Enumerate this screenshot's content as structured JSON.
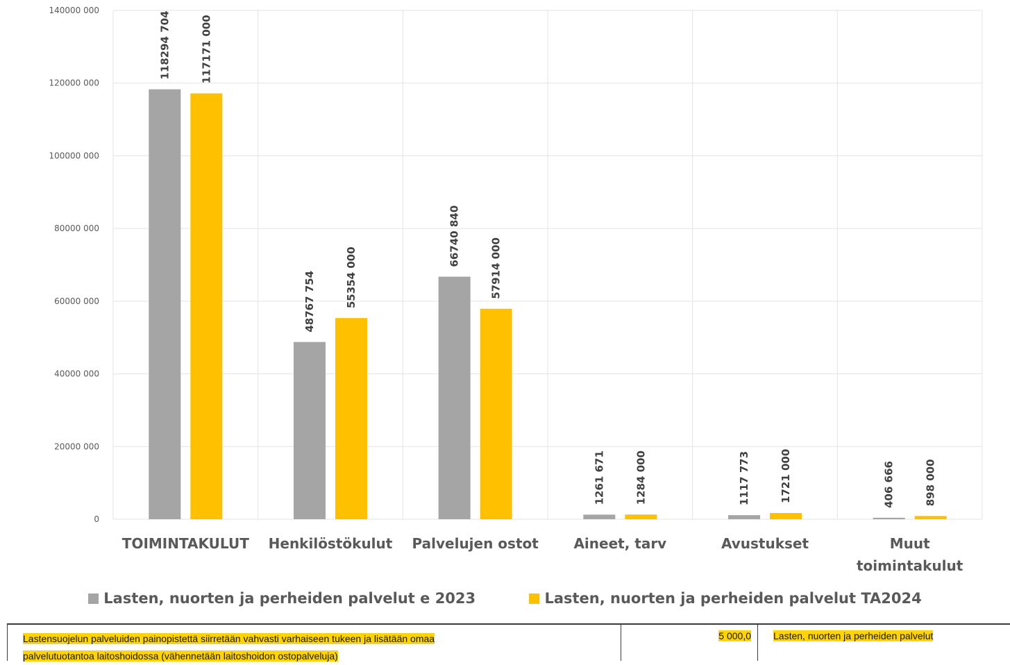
{
  "chart_data": {
    "type": "bar",
    "title": "",
    "xlabel": "",
    "ylabel": "",
    "ylim": [
      0,
      140000000
    ],
    "yticks": [
      "0",
      "20000 000",
      "40000 000",
      "60000 000",
      "80000 000",
      "100000 000",
      "120000 000",
      "140000 000"
    ],
    "categories": [
      [
        "TOIMINTAKULUT"
      ],
      [
        "Henkilöstökulut"
      ],
      [
        "Palvelujen ostot"
      ],
      [
        "Aineet, tarv"
      ],
      [
        "Avustukset"
      ],
      [
        "Muut",
        "toimintakulut"
      ]
    ],
    "series": [
      {
        "name": "Lasten, nuorten ja perheiden palvelut e 2023",
        "color": "#a5a5a5",
        "values": [
          118294704,
          48767754,
          66740840,
          1261671,
          1117773,
          406666
        ],
        "labels": [
          "118294 704",
          "48767 754",
          "66740 840",
          "1261 671",
          "1117 773",
          "406 666"
        ]
      },
      {
        "name": "Lasten, nuorten ja perheiden palvelut TA2024",
        "color": "#ffc000",
        "values": [
          117171000,
          55354000,
          57914000,
          1284000,
          1721000,
          898000
        ],
        "labels": [
          "117171 000",
          "55354 000",
          "57914 000",
          "1284 000",
          "1721 000",
          "898 000"
        ]
      }
    ],
    "grid": true,
    "legend": "bottom"
  },
  "table": {
    "description_line1": "Lastensuojelun palveluiden painopistettä siirretään vahvasti varhaiseen tukeen ja lisätään omaa",
    "description_line2": "palvelutuotantoa laitoshoidossa (vähennetään laitoshoidon ostopalveluja)",
    "amount": "5 000,0",
    "unit": "Lasten, nuorten ja perheiden palvelut"
  }
}
